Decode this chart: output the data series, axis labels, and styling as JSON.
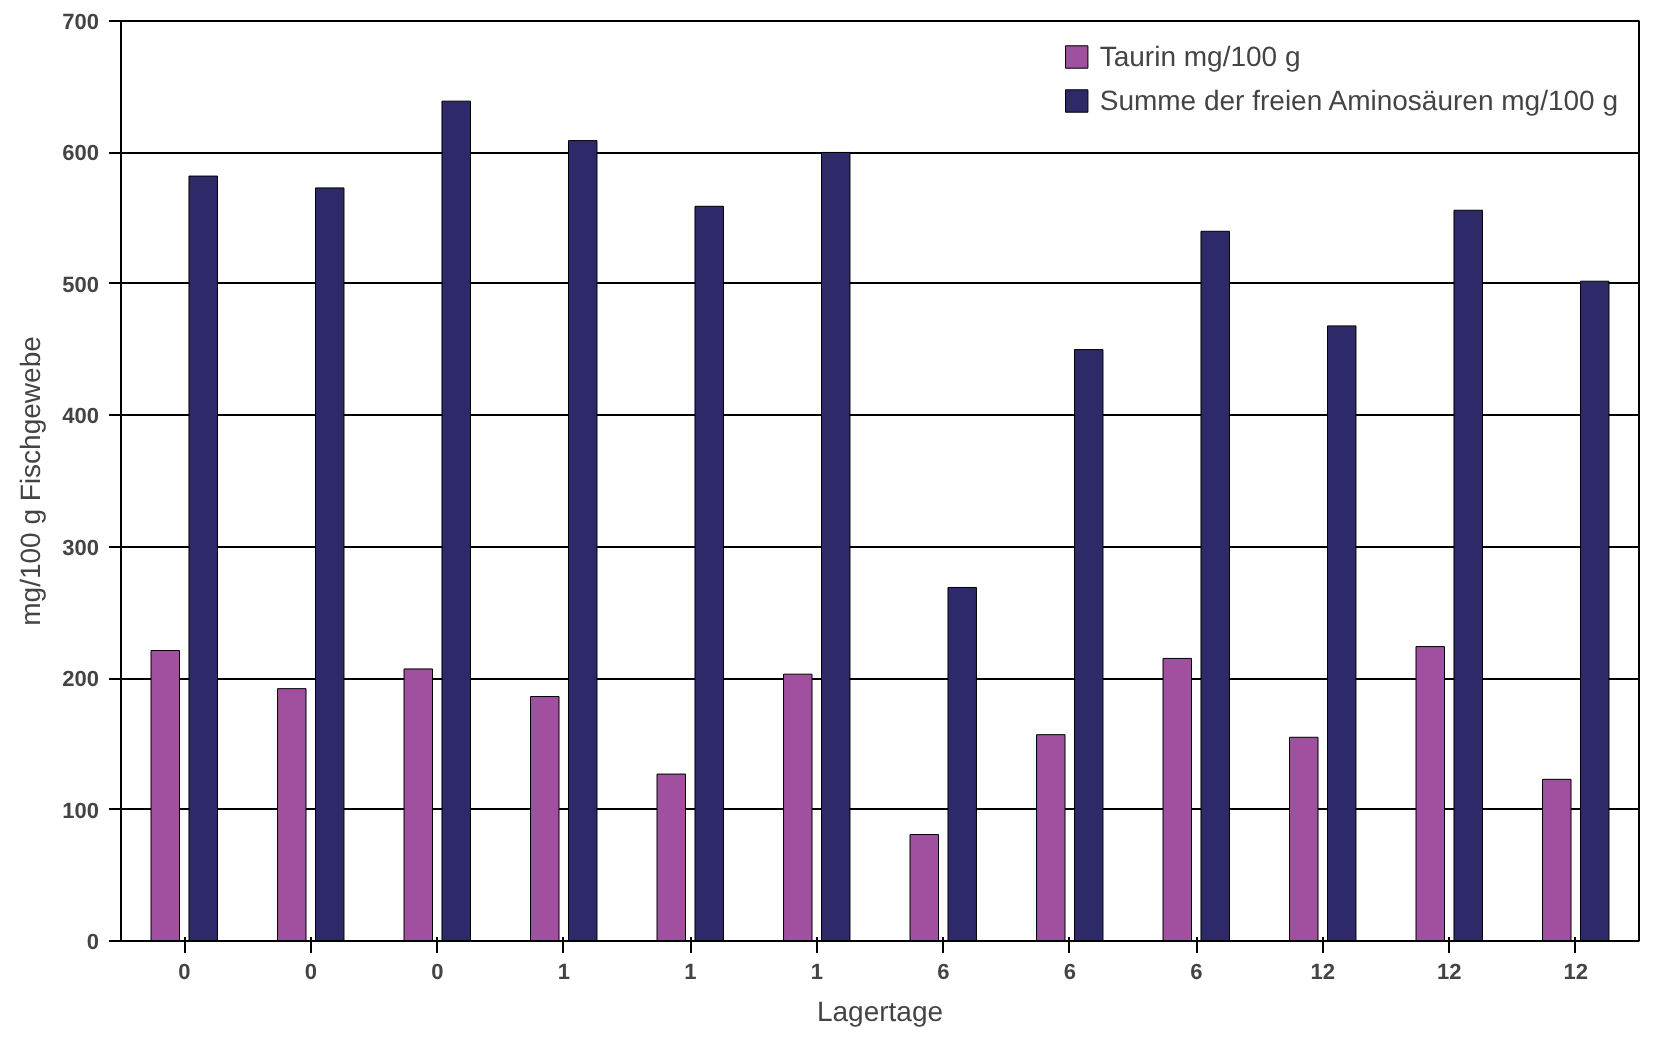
{
  "chart_data": {
    "type": "bar",
    "xlabel": "Lagertage",
    "ylabel": "mg/100 g Fischgewebe",
    "categories": [
      "0",
      "0",
      "0",
      "1",
      "1",
      "1",
      "6",
      "6",
      "6",
      "12",
      "12",
      "12"
    ],
    "series": [
      {
        "name": "Taurin mg/100 g",
        "color": "#a0509f",
        "values": [
          221,
          192,
          207,
          186,
          127,
          203,
          81,
          157,
          215,
          155,
          224,
          123
        ]
      },
      {
        "name": "Summe der freien Aminosäuren mg/100 g",
        "color": "#2e2a69",
        "values": [
          582,
          573,
          639,
          609,
          559,
          600,
          269,
          450,
          540,
          468,
          556,
          502
        ]
      }
    ],
    "ylim": [
      0,
      700
    ],
    "yticks": [
      0,
      100,
      200,
      300,
      400,
      500,
      600,
      700
    ],
    "grid": "y",
    "legend": "top right"
  }
}
